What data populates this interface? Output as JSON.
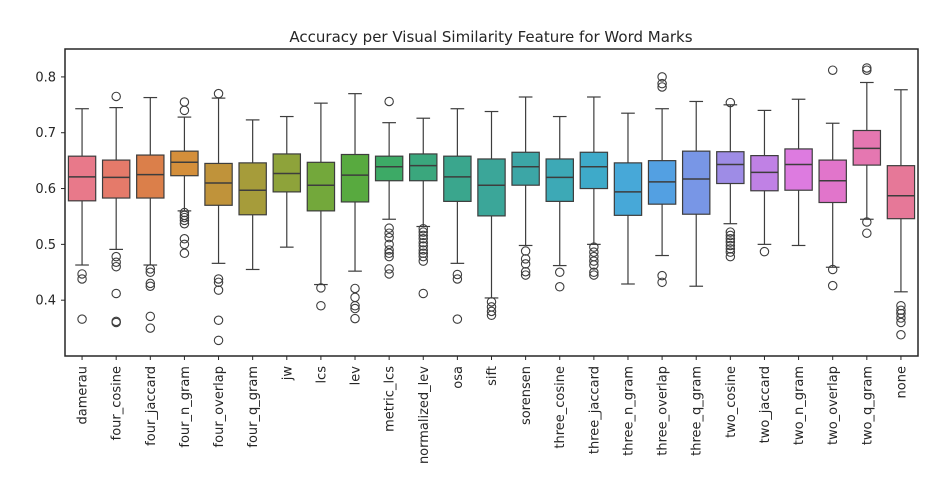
{
  "chart_data": {
    "type": "boxplot",
    "title": "Accuracy per Visual Similarity Feature for Word Marks",
    "xlabel": "",
    "ylabel": "",
    "ylim": [
      0.3,
      0.85
    ],
    "yticks": [
      0.4,
      0.5,
      0.6,
      0.7,
      0.8
    ],
    "grid": false,
    "categories": [
      "damerau",
      "four_cosine",
      "four_jaccard",
      "four_n_gram",
      "four_overlap",
      "four_q_gram",
      "jw",
      "lcs",
      "lev",
      "metric_lcs",
      "normalized_lev",
      "osa",
      "sift",
      "sorensen",
      "three_cosine",
      "three_jaccard",
      "three_n_gram",
      "three_overlap",
      "three_q_gram",
      "two_cosine",
      "two_jaccard",
      "two_n_gram",
      "two_overlap",
      "two_q_gram",
      "none"
    ],
    "colors": [
      "#e8798a",
      "#e57a6a",
      "#db7f4a",
      "#d48f3b",
      "#c0933a",
      "#a69c3a",
      "#8ea33a",
      "#73a83b",
      "#58aa3f",
      "#3daa66",
      "#3aa77d",
      "#3aa68d",
      "#3ba699",
      "#3ca6a6",
      "#3da9b6",
      "#3eaac9",
      "#47a8d8",
      "#53a0e2",
      "#7896e6",
      "#9e8ce6",
      "#c081e5",
      "#dd7be0",
      "#e175cb",
      "#e577b1",
      "#e67898"
    ],
    "boxes": [
      {
        "category": "damerau",
        "whislo": 0.463,
        "q1": 0.578,
        "med": 0.621,
        "q3": 0.658,
        "whishi": 0.743,
        "fliers": [
          0.447,
          0.438,
          0.366
        ]
      },
      {
        "category": "four_cosine",
        "whislo": 0.491,
        "q1": 0.583,
        "med": 0.62,
        "q3": 0.651,
        "whishi": 0.745,
        "fliers": [
          0.765,
          0.478,
          0.468,
          0.46,
          0.412,
          0.362,
          0.36
        ]
      },
      {
        "category": "four_jaccard",
        "whislo": 0.463,
        "q1": 0.583,
        "med": 0.625,
        "q3": 0.66,
        "whishi": 0.763,
        "fliers": [
          0.456,
          0.45,
          0.43,
          0.425,
          0.371,
          0.35
        ]
      },
      {
        "category": "four_n_gram",
        "whislo": 0.56,
        "q1": 0.623,
        "med": 0.647,
        "q3": 0.667,
        "whishi": 0.728,
        "fliers": [
          0.755,
          0.74,
          0.557,
          0.552,
          0.548,
          0.543,
          0.537,
          0.51,
          0.5,
          0.484
        ]
      },
      {
        "category": "four_overlap",
        "whislo": 0.466,
        "q1": 0.57,
        "med": 0.61,
        "q3": 0.645,
        "whishi": 0.762,
        "fliers": [
          0.77,
          0.438,
          0.432,
          0.418,
          0.364,
          0.328
        ]
      },
      {
        "category": "four_q_gram",
        "whislo": 0.455,
        "q1": 0.553,
        "med": 0.597,
        "q3": 0.646,
        "whishi": 0.723,
        "fliers": []
      },
      {
        "category": "jw",
        "whislo": 0.495,
        "q1": 0.594,
        "med": 0.627,
        "q3": 0.662,
        "whishi": 0.729,
        "fliers": []
      },
      {
        "category": "lcs",
        "whislo": 0.428,
        "q1": 0.56,
        "med": 0.606,
        "q3": 0.647,
        "whishi": 0.753,
        "fliers": [
          0.422,
          0.39
        ]
      },
      {
        "category": "lev",
        "whislo": 0.452,
        "q1": 0.576,
        "med": 0.624,
        "q3": 0.661,
        "whishi": 0.77,
        "fliers": [
          0.421,
          0.405,
          0.39,
          0.385,
          0.367
        ]
      },
      {
        "category": "metric_lcs",
        "whislo": 0.545,
        "q1": 0.614,
        "med": 0.639,
        "q3": 0.658,
        "whishi": 0.718,
        "fliers": [
          0.756,
          0.529,
          0.52,
          0.512,
          0.5,
          0.49,
          0.484,
          0.478,
          0.456,
          0.447
        ]
      },
      {
        "category": "normalized_lev",
        "whislo": 0.532,
        "q1": 0.614,
        "med": 0.641,
        "q3": 0.662,
        "whishi": 0.726,
        "fliers": [
          0.528,
          0.522,
          0.516,
          0.51,
          0.503,
          0.497,
          0.49,
          0.484,
          0.478,
          0.47,
          0.412
        ]
      },
      {
        "category": "osa",
        "whislo": 0.466,
        "q1": 0.577,
        "med": 0.621,
        "q3": 0.658,
        "whishi": 0.743,
        "fliers": [
          0.446,
          0.438,
          0.366
        ]
      },
      {
        "category": "sift",
        "whislo": 0.404,
        "q1": 0.551,
        "med": 0.606,
        "q3": 0.653,
        "whishi": 0.738,
        "fliers": [
          0.397,
          0.388,
          0.38,
          0.373
        ]
      },
      {
        "category": "sorensen",
        "whislo": 0.498,
        "q1": 0.606,
        "med": 0.639,
        "q3": 0.665,
        "whishi": 0.764,
        "fliers": [
          0.488,
          0.474,
          0.465,
          0.451,
          0.445
        ]
      },
      {
        "category": "three_cosine",
        "whislo": 0.462,
        "q1": 0.577,
        "med": 0.62,
        "q3": 0.653,
        "whishi": 0.729,
        "fliers": [
          0.45,
          0.424
        ]
      },
      {
        "category": "three_jaccard",
        "whislo": 0.5,
        "q1": 0.6,
        "med": 0.639,
        "q3": 0.665,
        "whishi": 0.764,
        "fliers": [
          0.495,
          0.486,
          0.478,
          0.47,
          0.463,
          0.45,
          0.445
        ]
      },
      {
        "category": "three_n_gram",
        "whislo": 0.429,
        "q1": 0.552,
        "med": 0.594,
        "q3": 0.646,
        "whishi": 0.735,
        "fliers": []
      },
      {
        "category": "three_overlap",
        "whislo": 0.48,
        "q1": 0.572,
        "med": 0.612,
        "q3": 0.65,
        "whishi": 0.743,
        "fliers": [
          0.8,
          0.788,
          0.782,
          0.444,
          0.432
        ]
      },
      {
        "category": "three_q_gram",
        "whislo": 0.425,
        "q1": 0.554,
        "med": 0.617,
        "q3": 0.667,
        "whishi": 0.756,
        "fliers": []
      },
      {
        "category": "two_cosine",
        "whislo": 0.537,
        "q1": 0.609,
        "med": 0.643,
        "q3": 0.666,
        "whishi": 0.75,
        "fliers": [
          0.754,
          0.522,
          0.516,
          0.51,
          0.504,
          0.498,
          0.492,
          0.486,
          0.478
        ]
      },
      {
        "category": "two_jaccard",
        "whislo": 0.5,
        "q1": 0.596,
        "med": 0.629,
        "q3": 0.659,
        "whishi": 0.74,
        "fliers": [
          0.487
        ]
      },
      {
        "category": "two_n_gram",
        "whislo": 0.498,
        "q1": 0.597,
        "med": 0.643,
        "q3": 0.671,
        "whishi": 0.76,
        "fliers": []
      },
      {
        "category": "two_overlap",
        "whislo": 0.459,
        "q1": 0.575,
        "med": 0.614,
        "q3": 0.651,
        "whishi": 0.717,
        "fliers": [
          0.812,
          0.455,
          0.426
        ]
      },
      {
        "category": "two_q_gram",
        "whislo": 0.545,
        "q1": 0.642,
        "med": 0.672,
        "q3": 0.704,
        "whishi": 0.79,
        "fliers": [
          0.816,
          0.812,
          0.54,
          0.52
        ]
      },
      {
        "category": "none",
        "whislo": 0.415,
        "q1": 0.546,
        "med": 0.587,
        "q3": 0.641,
        "whishi": 0.777,
        "fliers": [
          0.39,
          0.382,
          0.376,
          0.368,
          0.36,
          0.338
        ]
      }
    ]
  }
}
